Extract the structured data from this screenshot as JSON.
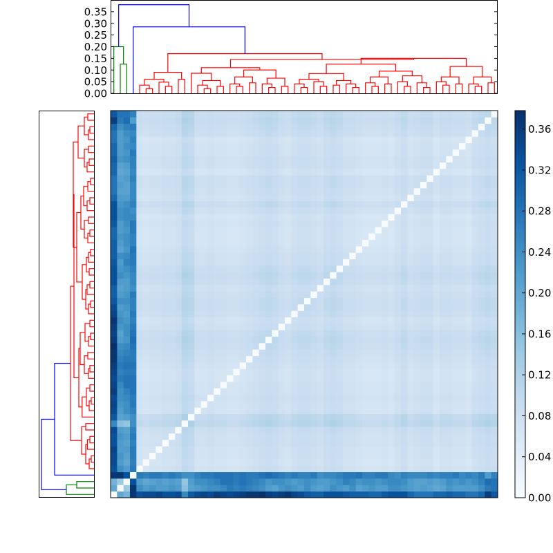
{
  "chart_data": {
    "type": "heatmap",
    "title": "",
    "leaf_count": 60,
    "colormap": "Blues",
    "colormap_stops": [
      "#f7fbff",
      "#deebf7",
      "#c6dbef",
      "#9ecae1",
      "#6baed6",
      "#4292c6",
      "#2171b5",
      "#08519c",
      "#08306b"
    ],
    "value_range": [
      0,
      0.378
    ],
    "colorbar": {
      "ticks": [
        0.0,
        0.04,
        0.08,
        0.12,
        0.16,
        0.2,
        0.24,
        0.28,
        0.32,
        0.36
      ],
      "tick_labels": [
        "0.00",
        "0.04",
        "0.08",
        "0.12",
        "0.16",
        "0.20",
        "0.24",
        "0.28",
        "0.32",
        "0.36"
      ]
    },
    "dendrogram_top": {
      "ylim": [
        0,
        0.4
      ],
      "ticks": [
        0,
        0.05,
        0.1,
        0.15,
        0.2,
        0.25,
        0.3,
        0.35
      ],
      "tick_labels": [
        "0.00",
        "0.05",
        "0.10",
        "0.15",
        "0.20",
        "0.25",
        "0.30",
        "0.35"
      ]
    },
    "dendrogram_left": {
      "xlim": [
        0,
        0.4
      ]
    },
    "link_colors": {
      "above_threshold": "#0000ff",
      "cluster_1": "#008000",
      "cluster_2": "#ff0000"
    },
    "tree": [
      0.38,
      [
        0.2,
        0,
        [
          0.125,
          1,
          2
        ],
        "#008000"
      ],
      [
        0.285,
        3,
        [
          0.17,
          [
            0.09,
            [
              0.06,
              [
                0.035,
                4,
                [
                  0.02,
                  5,
                  6
                ]
              ],
              [
                0.048,
                7,
                [
                  0.03,
                  8,
                  9
                ]
              ]
            ],
            [
              0.06,
              10,
              11
            ]
          ],
          [
            0.145,
            [
              0.11,
              [
                0.086,
                12,
                [
                  0.055,
                  [
                    0.035,
                    13,
                    [
                      0.02,
                      14,
                      15
                    ]
                  ],
                  [
                    0.03,
                    16,
                    17
                  ]
                ]
              ],
              [
                0.1,
                [
                  0.07,
                  [
                    0.04,
                    18,
                    [
                      0.03,
                      19,
                      20
                    ]
                  ],
                  [
                    0.045,
                    21,
                    22
                  ]
                ],
                [
                  0.065,
                  [
                    0.04,
                    23,
                    [
                      0.025,
                      24,
                      25
                    ]
                  ],
                  [
                    0.03,
                    26,
                    27
                  ]
                ]
              ]
            ],
            [
              0.15,
              [
                0.125,
                [
                  0.085,
                  [
                    0.06,
                    [
                      0.04,
                      28,
                      [
                        0.025,
                        29,
                        30
                      ]
                    ],
                    [
                      0.05,
                      31,
                      [
                        0.03,
                        32,
                        33
                      ]
                    ]
                  ],
                  [
                    0.055,
                    [
                      0.035,
                      34,
                      35
                    ],
                    [
                      0.04,
                      36,
                      [
                        0.025,
                        37,
                        38
                      ]
                    ]
                  ]
                ],
                [
                  0.095,
                  [
                    0.07,
                    [
                      0.045,
                      39,
                      [
                        0.03,
                        40,
                        41
                      ]
                    ],
                    [
                      0.04,
                      42,
                      43
                    ]
                  ],
                  [
                    0.075,
                    [
                      0.05,
                      44,
                      [
                        0.03,
                        45,
                        46
                      ]
                    ],
                    [
                      0.045,
                      47,
                      [
                        0.025,
                        48,
                        49
                      ]
                    ]
                  ]
                ]
              ],
              [
                0.115,
                [
                  0.07,
                  [
                    0.05,
                    50,
                    [
                      0.035,
                      51,
                      52
                    ]
                  ],
                  [
                    0.04,
                    53,
                    54
                  ]
                ],
                [
                  0.07,
                  [
                    0.04,
                    55,
                    [
                      0.03,
                      56,
                      57
                    ]
                  ],
                  [
                    0.045,
                    58,
                    59
                  ]
                ]
              ]
            ]
          ],
          "#ff0000"
        ]
      ]
    ],
    "outlier_leaf_distances": [
      [
        0,
        0.2,
        0.18,
        0.37,
        0.33,
        0.34,
        0.34,
        0.35,
        0.33,
        0.33,
        0.34,
        0.25,
        0.32,
        0.34,
        0.35,
        0.34,
        0.36,
        0.35,
        0.34,
        0.35,
        0.36,
        0.37,
        0.37,
        0.38,
        0.36,
        0.35,
        0.36,
        0.37,
        0.35,
        0.34,
        0.32,
        0.31,
        0.31,
        0.33,
        0.33,
        0.33,
        0.32,
        0.31,
        0.31,
        0.31,
        0.3,
        0.3,
        0.32,
        0.33,
        0.33,
        0.33,
        0.3,
        0.28,
        0.28,
        0.28,
        0.3,
        0.3,
        0.31,
        0.3,
        0.3,
        0.28,
        0.28,
        0.3,
        0.36,
        0.32
      ],
      [
        0.2,
        0,
        0.14,
        0.37,
        0.24,
        0.22,
        0.23,
        0.22,
        0.22,
        0.23,
        0.22,
        0.16,
        0.21,
        0.22,
        0.23,
        0.24,
        0.24,
        0.25,
        0.27,
        0.26,
        0.27,
        0.26,
        0.25,
        0.24,
        0.22,
        0.21,
        0.23,
        0.24,
        0.23,
        0.22,
        0.24,
        0.22,
        0.21,
        0.22,
        0.24,
        0.23,
        0.22,
        0.24,
        0.21,
        0.22,
        0.23,
        0.22,
        0.22,
        0.24,
        0.24,
        0.23,
        0.22,
        0.21,
        0.22,
        0.21,
        0.2,
        0.21,
        0.23,
        0.22,
        0.22,
        0.22,
        0.22,
        0.24,
        0.27,
        0.28
      ],
      [
        0.18,
        0.14,
        0,
        0.33,
        0.22,
        0.2,
        0.21,
        0.22,
        0.21,
        0.22,
        0.21,
        0.15,
        0.22,
        0.24,
        0.24,
        0.25,
        0.26,
        0.28,
        0.28,
        0.27,
        0.28,
        0.27,
        0.26,
        0.25,
        0.23,
        0.24,
        0.24,
        0.23,
        0.22,
        0.23,
        0.24,
        0.23,
        0.22,
        0.22,
        0.23,
        0.24,
        0.26,
        0.25,
        0.23,
        0.24,
        0.24,
        0.23,
        0.24,
        0.25,
        0.25,
        0.24,
        0.22,
        0.21,
        0.21,
        0.22,
        0.21,
        0.22,
        0.24,
        0.23,
        0.24,
        0.23,
        0.24,
        0.26,
        0.29,
        0.28
      ],
      [
        0.37,
        0.37,
        0.33,
        0,
        0.27,
        0.26,
        0.27,
        0.27,
        0.26,
        0.27,
        0.26,
        0.24,
        0.24,
        0.26,
        0.27,
        0.27,
        0.28,
        0.28,
        0.28,
        0.27,
        0.28,
        0.27,
        0.27,
        0.28,
        0.29,
        0.28,
        0.27,
        0.26,
        0.27,
        0.26,
        0.26,
        0.27,
        0.24,
        0.25,
        0.25,
        0.26,
        0.27,
        0.27,
        0.28,
        0.26,
        0.26,
        0.27,
        0.27,
        0.25,
        0.24,
        0.26,
        0.25,
        0.25,
        0.25,
        0.26,
        0.25,
        0.26,
        0.26,
        0.27,
        0.25,
        0.26,
        0.25,
        0.27,
        0.22,
        0.26
      ]
    ],
    "leaf_mean_distance": [
      0,
      0,
      0,
      0,
      0.07,
      0.06,
      0.07,
      0.07,
      0.08,
      0.08,
      0.09,
      0.13,
      0.12,
      0.07,
      0.07,
      0.08,
      0.07,
      0.07,
      0.06,
      0.06,
      0.07,
      0.08,
      0.09,
      0.1,
      0.11,
      0.1,
      0.08,
      0.07,
      0.09,
      0.1,
      0.1,
      0.09,
      0.08,
      0.1,
      0.11,
      0.1,
      0.08,
      0.08,
      0.07,
      0.06,
      0.06,
      0.06,
      0.07,
      0.06,
      0.08,
      0.1,
      0.07,
      0.08,
      0.09,
      0.09,
      0.06,
      0.08,
      0.08,
      0.07,
      0.07,
      0.06,
      0.09,
      0.1,
      0.11,
      0.1
    ]
  }
}
